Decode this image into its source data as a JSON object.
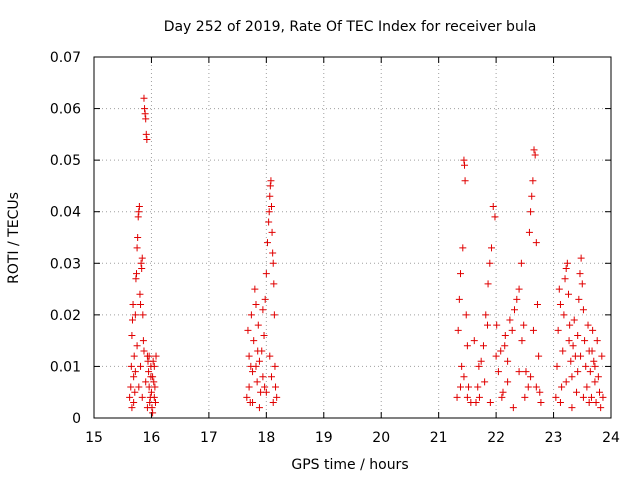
{
  "chart_data": {
    "type": "scatter",
    "title": "Day 252 of 2019, Rate Of TEC Index for receiver bula",
    "xlabel": "GPS time / hours",
    "ylabel": "ROTI / TECUs",
    "xlim": [
      15,
      24
    ],
    "ylim": [
      0,
      0.07
    ],
    "x_ticks": [
      "15",
      "16",
      "17",
      "18",
      "19",
      "20",
      "21",
      "22",
      "23",
      "24"
    ],
    "y_ticks": [
      "0",
      "0.01",
      "0.02",
      "0.03",
      "0.04",
      "0.05",
      "0.06",
      "0.07"
    ],
    "grid": true,
    "marker": "+",
    "color": "#e00000",
    "points": [
      [
        15.62,
        0.004
      ],
      [
        15.64,
        0.006
      ],
      [
        15.65,
        0.01
      ],
      [
        15.66,
        0.016
      ],
      [
        15.67,
        0.019
      ],
      [
        15.68,
        0.022
      ],
      [
        15.69,
        0.008
      ],
      [
        15.7,
        0.012
      ],
      [
        15.71,
        0.005
      ],
      [
        15.72,
        0.02
      ],
      [
        15.73,
        0.027
      ],
      [
        15.74,
        0.028
      ],
      [
        15.75,
        0.033
      ],
      [
        15.76,
        0.035
      ],
      [
        15.77,
        0.039
      ],
      [
        15.78,
        0.04
      ],
      [
        15.79,
        0.041
      ],
      [
        15.8,
        0.024
      ],
      [
        15.81,
        0.022
      ],
      [
        15.82,
        0.03
      ],
      [
        15.83,
        0.029
      ],
      [
        15.84,
        0.031
      ],
      [
        15.85,
        0.02
      ],
      [
        15.86,
        0.015
      ],
      [
        15.87,
        0.062
      ],
      [
        15.88,
        0.06
      ],
      [
        15.89,
        0.059
      ],
      [
        15.9,
        0.058
      ],
      [
        15.91,
        0.055
      ],
      [
        15.92,
        0.054
      ],
      [
        15.93,
        0.012
      ],
      [
        15.94,
        0.011
      ],
      [
        15.95,
        0.009
      ],
      [
        15.96,
        0.006
      ],
      [
        15.97,
        0.003
      ],
      [
        15.98,
        0.004
      ],
      [
        15.99,
        0.008
      ],
      [
        16.0,
        0.005
      ],
      [
        16.01,
        0.002
      ],
      [
        16.02,
        0.001
      ],
      [
        16.03,
        0.011
      ],
      [
        16.04,
        0.007
      ],
      [
        16.05,
        0.01
      ],
      [
        16.06,
        0.006
      ],
      [
        16.07,
        0.003
      ],
      [
        16.08,
        0.012
      ],
      [
        15.66,
        0.002
      ],
      [
        15.69,
        0.003
      ],
      [
        15.72,
        0.009
      ],
      [
        15.75,
        0.014
      ],
      [
        15.78,
        0.006
      ],
      [
        15.81,
        0.01
      ],
      [
        15.84,
        0.004
      ],
      [
        15.87,
        0.013
      ],
      [
        15.9,
        0.007
      ],
      [
        15.93,
        0.002
      ],
      [
        15.96,
        0.012
      ],
      [
        15.99,
        0.01
      ],
      [
        16.02,
        0.008
      ],
      [
        16.05,
        0.004
      ],
      [
        17.66,
        0.004
      ],
      [
        17.68,
        0.017
      ],
      [
        17.7,
        0.012
      ],
      [
        17.72,
        0.003
      ],
      [
        17.74,
        0.02
      ],
      [
        17.76,
        0.009
      ],
      [
        17.78,
        0.015
      ],
      [
        17.8,
        0.025
      ],
      [
        17.82,
        0.022
      ],
      [
        17.84,
        0.007
      ],
      [
        17.86,
        0.018
      ],
      [
        17.88,
        0.011
      ],
      [
        17.9,
        0.005
      ],
      [
        17.92,
        0.013
      ],
      [
        17.94,
        0.021
      ],
      [
        17.96,
        0.016
      ],
      [
        17.98,
        0.023
      ],
      [
        18.0,
        0.028
      ],
      [
        18.02,
        0.034
      ],
      [
        18.04,
        0.038
      ],
      [
        18.05,
        0.04
      ],
      [
        18.06,
        0.043
      ],
      [
        18.07,
        0.045
      ],
      [
        18.08,
        0.046
      ],
      [
        18.09,
        0.041
      ],
      [
        18.1,
        0.036
      ],
      [
        18.11,
        0.032
      ],
      [
        18.12,
        0.03
      ],
      [
        18.13,
        0.026
      ],
      [
        18.14,
        0.02
      ],
      [
        18.15,
        0.01
      ],
      [
        18.16,
        0.006
      ],
      [
        18.18,
        0.004
      ],
      [
        17.7,
        0.006
      ],
      [
        17.76,
        0.003
      ],
      [
        17.82,
        0.01
      ],
      [
        17.88,
        0.002
      ],
      [
        17.94,
        0.008
      ],
      [
        18.0,
        0.005
      ],
      [
        18.06,
        0.012
      ],
      [
        18.12,
        0.003
      ],
      [
        17.73,
        0.01
      ],
      [
        17.85,
        0.013
      ],
      [
        17.97,
        0.006
      ],
      [
        18.09,
        0.008
      ],
      [
        21.32,
        0.004
      ],
      [
        21.34,
        0.017
      ],
      [
        21.36,
        0.023
      ],
      [
        21.38,
        0.028
      ],
      [
        21.4,
        0.01
      ],
      [
        21.42,
        0.033
      ],
      [
        21.44,
        0.05
      ],
      [
        21.45,
        0.049
      ],
      [
        21.46,
        0.046
      ],
      [
        21.48,
        0.02
      ],
      [
        21.5,
        0.014
      ],
      [
        21.52,
        0.006
      ],
      [
        21.56,
        0.003
      ],
      [
        21.62,
        0.015
      ],
      [
        21.65,
        0.003
      ],
      [
        21.68,
        0.006
      ],
      [
        21.71,
        0.004
      ],
      [
        21.74,
        0.011
      ],
      [
        21.78,
        0.014
      ],
      [
        21.82,
        0.02
      ],
      [
        21.86,
        0.026
      ],
      [
        21.89,
        0.03
      ],
      [
        21.92,
        0.033
      ],
      [
        21.95,
        0.041
      ],
      [
        21.98,
        0.039
      ],
      [
        22.01,
        0.018
      ],
      [
        22.04,
        0.009
      ],
      [
        22.08,
        0.013
      ],
      [
        22.12,
        0.005
      ],
      [
        22.16,
        0.016
      ],
      [
        22.2,
        0.011
      ],
      [
        22.24,
        0.019
      ],
      [
        22.28,
        0.017
      ],
      [
        22.32,
        0.021
      ],
      [
        22.36,
        0.023
      ],
      [
        22.4,
        0.025
      ],
      [
        22.44,
        0.03
      ],
      [
        22.48,
        0.018
      ],
      [
        22.52,
        0.009
      ],
      [
        22.56,
        0.006
      ],
      [
        22.58,
        0.036
      ],
      [
        22.6,
        0.04
      ],
      [
        22.62,
        0.043
      ],
      [
        22.64,
        0.046
      ],
      [
        22.66,
        0.052
      ],
      [
        22.68,
        0.051
      ],
      [
        22.7,
        0.034
      ],
      [
        22.72,
        0.022
      ],
      [
        22.74,
        0.012
      ],
      [
        22.76,
        0.005
      ],
      [
        22.78,
        0.003
      ],
      [
        21.38,
        0.006
      ],
      [
        21.44,
        0.008
      ],
      [
        21.5,
        0.004
      ],
      [
        21.7,
        0.01
      ],
      [
        21.8,
        0.007
      ],
      [
        21.9,
        0.003
      ],
      [
        22.0,
        0.012
      ],
      [
        22.1,
        0.004
      ],
      [
        22.2,
        0.007
      ],
      [
        22.3,
        0.002
      ],
      [
        22.4,
        0.009
      ],
      [
        22.5,
        0.004
      ],
      [
        22.6,
        0.008
      ],
      [
        22.7,
        0.006
      ],
      [
        21.85,
        0.018
      ],
      [
        22.15,
        0.014
      ],
      [
        22.45,
        0.015
      ],
      [
        22.65,
        0.017
      ],
      [
        23.04,
        0.004
      ],
      [
        23.06,
        0.01
      ],
      [
        23.08,
        0.017
      ],
      [
        23.1,
        0.025
      ],
      [
        23.12,
        0.022
      ],
      [
        23.14,
        0.006
      ],
      [
        23.16,
        0.013
      ],
      [
        23.18,
        0.02
      ],
      [
        23.2,
        0.027
      ],
      [
        23.22,
        0.029
      ],
      [
        23.24,
        0.03
      ],
      [
        23.26,
        0.024
      ],
      [
        23.28,
        0.018
      ],
      [
        23.3,
        0.011
      ],
      [
        23.32,
        0.008
      ],
      [
        23.34,
        0.014
      ],
      [
        23.36,
        0.019
      ],
      [
        23.38,
        0.012
      ],
      [
        23.4,
        0.005
      ],
      [
        23.42,
        0.016
      ],
      [
        23.44,
        0.023
      ],
      [
        23.46,
        0.028
      ],
      [
        23.48,
        0.031
      ],
      [
        23.5,
        0.026
      ],
      [
        23.52,
        0.021
      ],
      [
        23.54,
        0.015
      ],
      [
        23.56,
        0.01
      ],
      [
        23.58,
        0.006
      ],
      [
        23.6,
        0.018
      ],
      [
        23.62,
        0.013
      ],
      [
        23.64,
        0.009
      ],
      [
        23.66,
        0.004
      ],
      [
        23.68,
        0.017
      ],
      [
        23.7,
        0.011
      ],
      [
        23.72,
        0.007
      ],
      [
        23.74,
        0.003
      ],
      [
        23.76,
        0.015
      ],
      [
        23.78,
        0.008
      ],
      [
        23.8,
        0.005
      ],
      [
        23.82,
        0.002
      ],
      [
        23.84,
        0.012
      ],
      [
        23.86,
        0.004
      ],
      [
        23.12,
        0.003
      ],
      [
        23.22,
        0.007
      ],
      [
        23.32,
        0.002
      ],
      [
        23.42,
        0.009
      ],
      [
        23.52,
        0.004
      ],
      [
        23.62,
        0.003
      ],
      [
        23.72,
        0.01
      ],
      [
        23.27,
        0.015
      ],
      [
        23.47,
        0.012
      ],
      [
        23.67,
        0.013
      ]
    ]
  }
}
